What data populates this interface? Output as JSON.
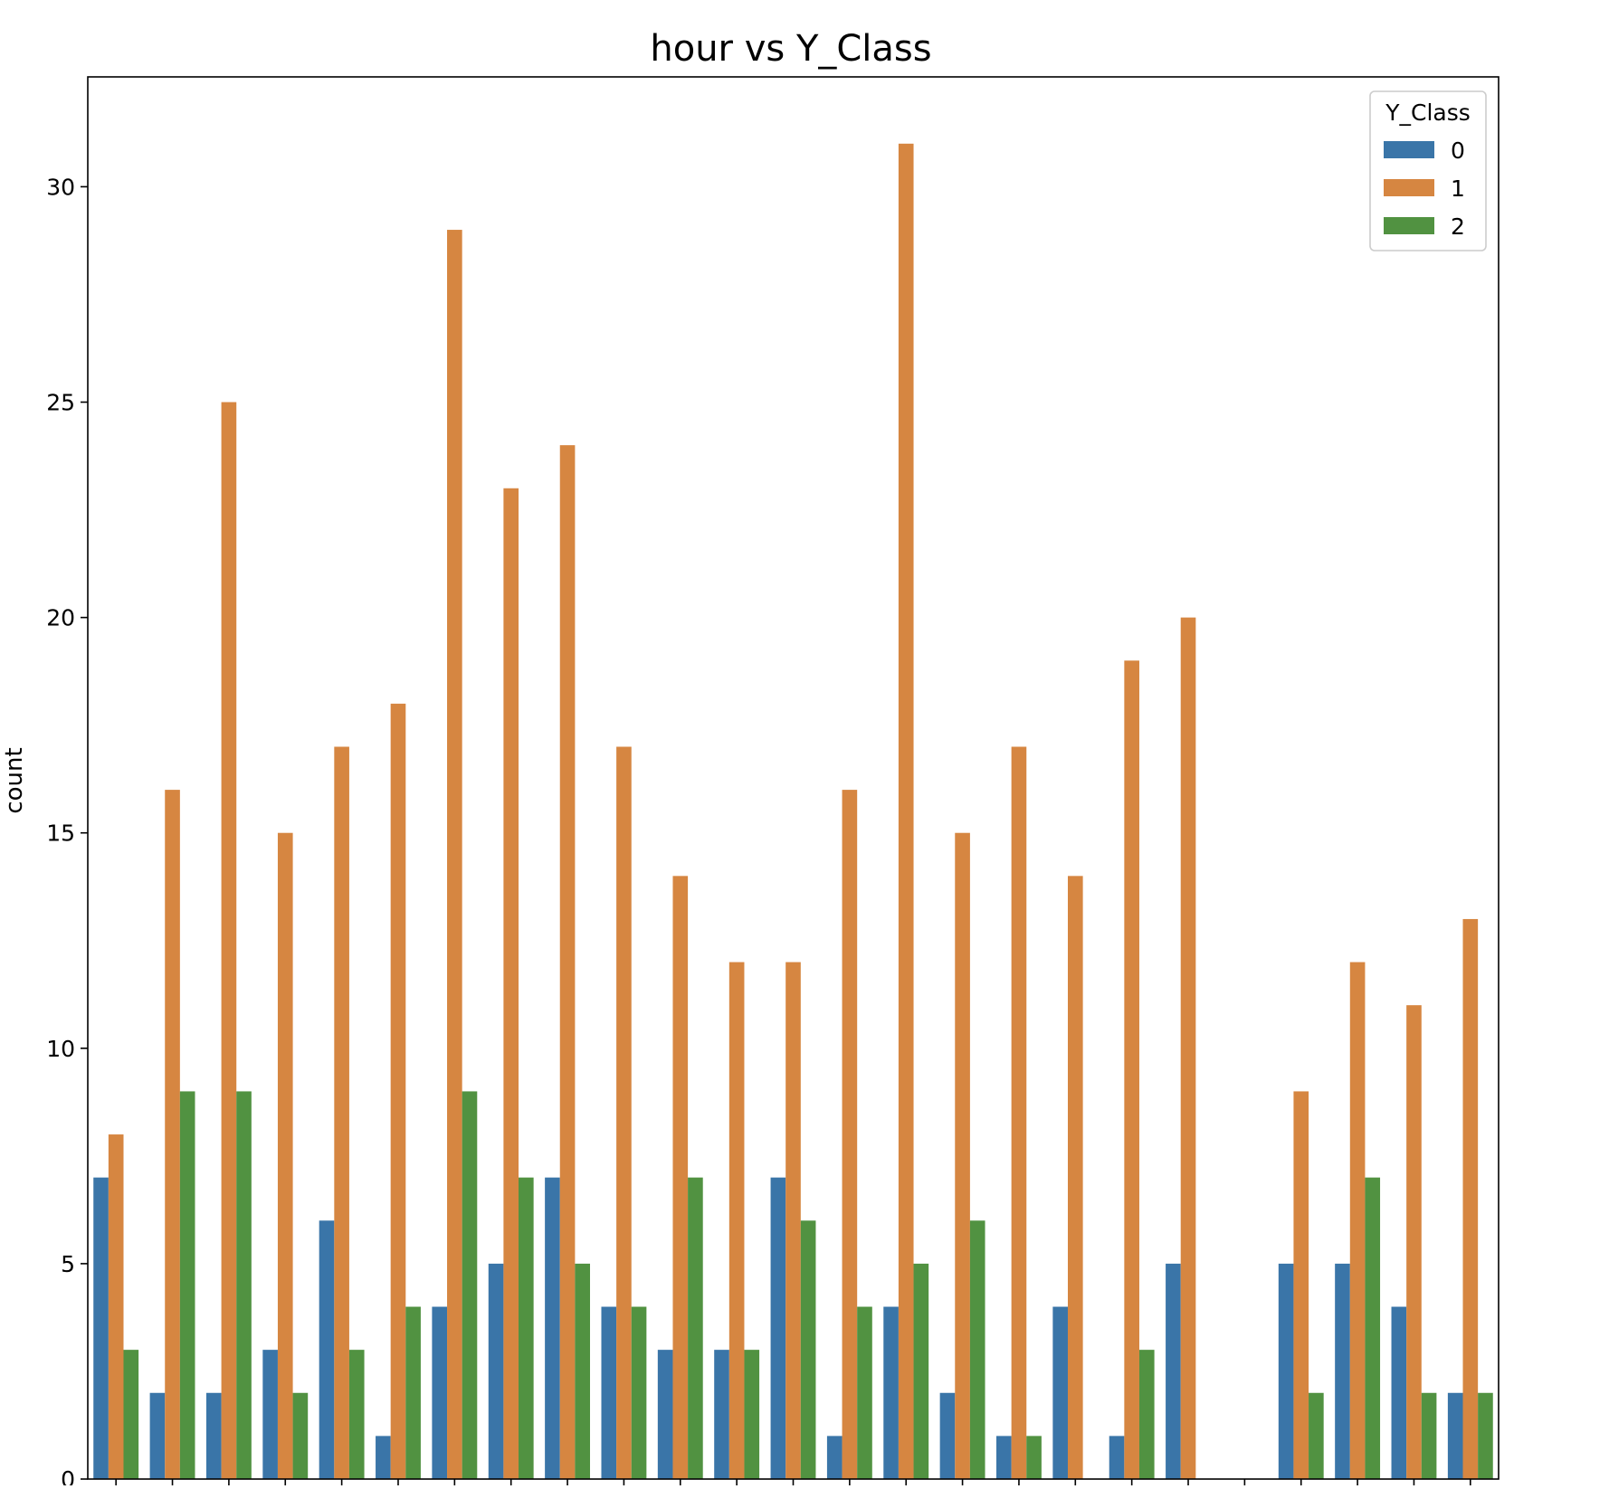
{
  "chart_data": {
    "type": "bar",
    "title": "hour vs Y_Class",
    "xlabel": "",
    "ylabel": "count",
    "ylim": [
      0,
      32.55
    ],
    "yticks": [
      0,
      5,
      10,
      15,
      20,
      25,
      30
    ],
    "grid": false,
    "legend": {
      "title": "Y_Class",
      "placement": "top-right"
    },
    "categories": [
      "",
      "",
      "",
      "",
      "",
      "",
      "",
      "",
      "",
      "",
      "",
      "",
      "",
      "",
      "",
      "",
      "",
      "",
      "",
      "",
      "",
      "",
      "",
      "",
      ""
    ],
    "series": [
      {
        "name": "0",
        "color": "#3a75a8",
        "values": [
          7,
          2,
          2,
          3,
          6,
          1,
          4,
          5,
          7,
          4,
          3,
          3,
          7,
          1,
          4,
          2,
          1,
          4,
          1,
          5,
          0,
          5,
          5,
          4,
          2
        ]
      },
      {
        "name": "1",
        "color": "#d68641",
        "values": [
          8,
          16,
          25,
          15,
          17,
          18,
          29,
          23,
          24,
          17,
          14,
          12,
          12,
          16,
          31,
          15,
          17,
          14,
          19,
          20,
          0,
          9,
          12,
          11,
          13
        ]
      },
      {
        "name": "2",
        "color": "#519241",
        "values": [
          3,
          9,
          9,
          2,
          3,
          4,
          9,
          7,
          5,
          4,
          7,
          3,
          6,
          4,
          5,
          6,
          1,
          0,
          3,
          0,
          0,
          2,
          7,
          2,
          2
        ]
      }
    ]
  }
}
